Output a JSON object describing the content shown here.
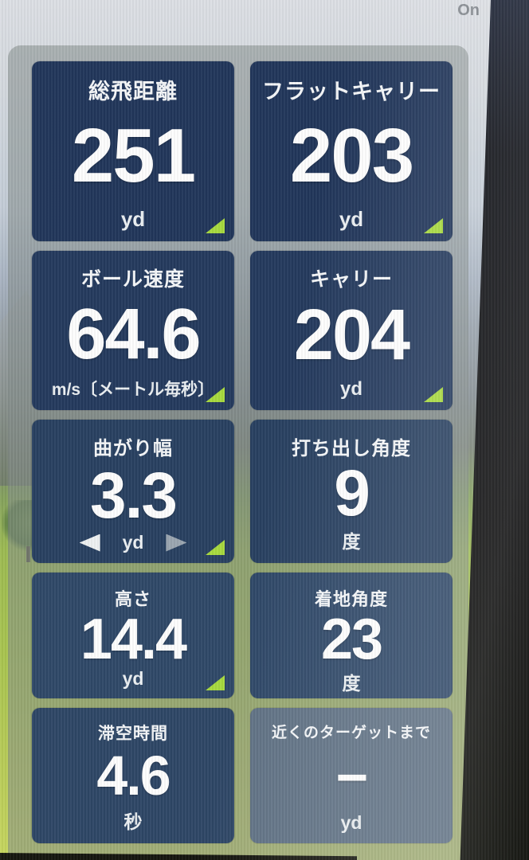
{
  "status": {
    "power_label": "On"
  },
  "colors": {
    "flag_green": "#a7d93e",
    "card_navy": "#22385c",
    "panel_gray": "rgba(132,141,138,0.55)",
    "bezel_black": "#070708"
  },
  "cards": [
    {
      "id": "total-distance",
      "title": "総飛距離",
      "value": "251",
      "unit": "yd",
      "flag": true,
      "arrows": false
    },
    {
      "id": "flat-carry",
      "title": "フラットキャリー",
      "value": "203",
      "unit": "yd",
      "flag": true,
      "arrows": false
    },
    {
      "id": "ball-speed",
      "title": "ボール速度",
      "value": "64.6",
      "unit": "m/s〔メートル毎秒〕",
      "flag": true,
      "arrows": false
    },
    {
      "id": "carry",
      "title": "キャリー",
      "value": "204",
      "unit": "yd",
      "flag": true,
      "arrows": false
    },
    {
      "id": "curve-width",
      "title": "曲がり幅",
      "value": "3.3",
      "unit": "yd",
      "flag": true,
      "arrows": true
    },
    {
      "id": "launch-angle",
      "title": "打ち出し角度",
      "value": "9",
      "unit": "度",
      "flag": false,
      "arrows": false
    },
    {
      "id": "height",
      "title": "高さ",
      "value": "14.4",
      "unit": "yd",
      "flag": true,
      "arrows": false
    },
    {
      "id": "landing-angle",
      "title": "着地角度",
      "value": "23",
      "unit": "度",
      "flag": false,
      "arrows": false
    },
    {
      "id": "hang-time",
      "title": "滞空時間",
      "value": "4.6",
      "unit": "秒",
      "flag": false,
      "arrows": false
    },
    {
      "id": "to-nearest-target",
      "title": "近くのターゲットまで",
      "value": "−",
      "unit": "yd",
      "flag": false,
      "arrows": false
    }
  ]
}
